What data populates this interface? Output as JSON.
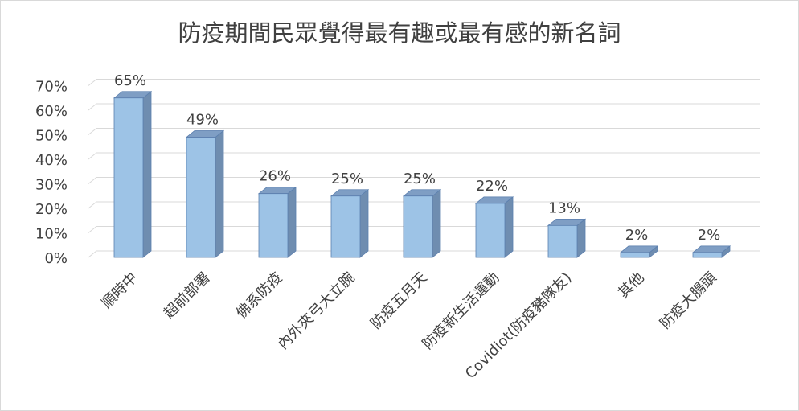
{
  "chart_data": {
    "type": "bar",
    "title": "防疫期間民眾覺得最有趣或最有感的新名詞",
    "categories": [
      "順時中",
      "超前部署",
      "佛系防疫",
      "內外夾弓大立腕",
      "防疫五月天",
      "防疫新生活運動",
      "Covidiot(防疫豬隊友)",
      "其他",
      "防疫大腸頭"
    ],
    "values": [
      65,
      49,
      26,
      25,
      25,
      22,
      13,
      2,
      2
    ],
    "data_labels": [
      "65%",
      "49%",
      "26%",
      "25%",
      "25%",
      "22%",
      "13%",
      "2%",
      "2%"
    ],
    "y_ticks": [
      "0%",
      "10%",
      "20%",
      "30%",
      "40%",
      "50%",
      "60%",
      "70%"
    ],
    "ylim": [
      0,
      70
    ],
    "grid": true,
    "colors": {
      "bar_front": "#9dc3e6",
      "bar_side": "#6f8db0",
      "bar_top": "#7f9ec4",
      "bar_edge": "#5b7fae",
      "grid": "#d9d9d9",
      "text": "#404040"
    }
  }
}
